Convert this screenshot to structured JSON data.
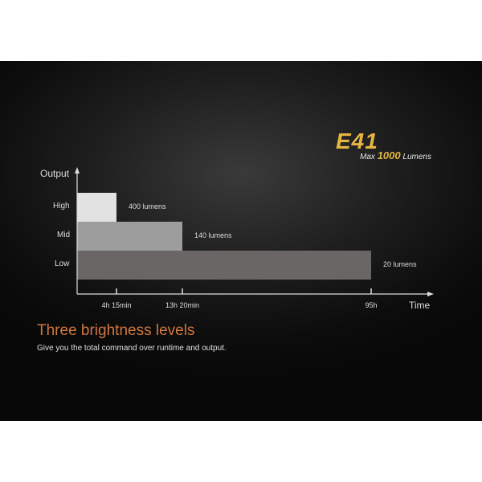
{
  "header": {
    "logo": "E41",
    "max_prefix": "Max",
    "max_value": "1000",
    "max_suffix": "Lumens"
  },
  "chart_data": {
    "type": "bar",
    "orientation": "horizontal",
    "ylabel": "Output",
    "xlabel": "Time",
    "categories": [
      "High",
      "Mid",
      "Low"
    ],
    "runtime_labels": [
      "4h 15min",
      "13h 20min",
      "95h"
    ],
    "runtime_hours": [
      4.25,
      13.33,
      95
    ],
    "data_labels": [
      "400 lumens",
      "140 lumens",
      "20 lumens"
    ],
    "lumens": [
      400,
      140,
      20
    ],
    "colors": [
      "#e2e2e2",
      "#9d9d9d",
      "#6a6665"
    ],
    "grid": false
  },
  "caption": {
    "title": "Three brightness levels",
    "subtitle": "Give you the total command over runtime and output."
  }
}
